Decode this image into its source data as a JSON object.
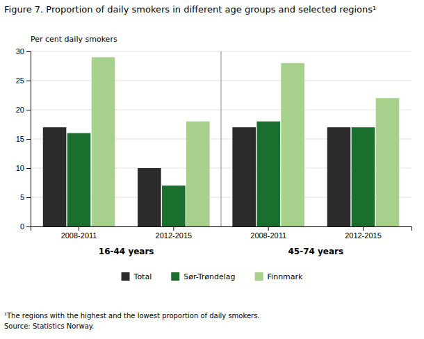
{
  "chart_data": {
    "type": "bar",
    "title": "Figure 7. Proportion of daily smokers in different age groups and selected regions¹",
    "ylabel": "Per cent daily smokers",
    "categories": [
      "2008-2011",
      "2012-2015",
      "2008-2011",
      "2012-2015"
    ],
    "group_labels": [
      "16-44 years",
      "45-74 years"
    ],
    "series": [
      {
        "name": "Total",
        "color": "#2b2b2b",
        "values": [
          17,
          10,
          17,
          17
        ]
      },
      {
        "name": "Sør-Trøndelag",
        "color": "#1a6e2e",
        "values": [
          16,
          7,
          18,
          17
        ]
      },
      {
        "name": "Finnmark",
        "color": "#a8d08d",
        "values": [
          29,
          18,
          28,
          22
        ]
      }
    ],
    "ylim": [
      0,
      30
    ],
    "yticks": [
      0,
      5,
      10,
      15,
      20,
      25,
      30
    ],
    "grid": true,
    "legend": "bottom",
    "annotations": [
      "¹The regions with the highest and the lowest proportion of daily smokers.",
      "Source: Statistics Norway."
    ]
  }
}
